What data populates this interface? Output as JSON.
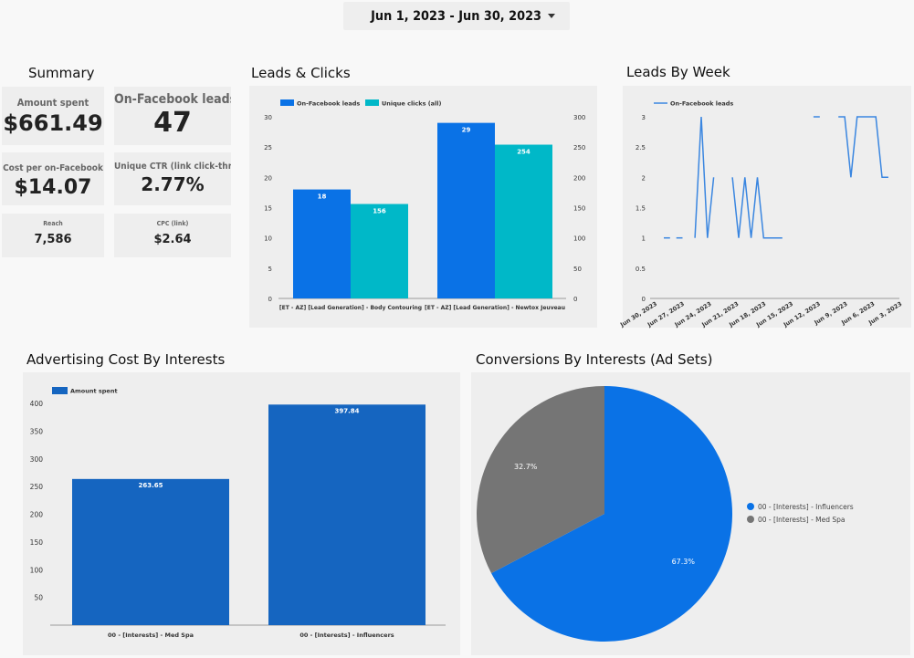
{
  "header": {
    "date_range": "Jun 1, 2023 - Jun 30, 2023"
  },
  "summary": {
    "title": "Summary",
    "kpis": [
      {
        "label": "Amount spent",
        "value": "$661.49"
      },
      {
        "label": "On-Facebook leads",
        "value": "47"
      },
      {
        "label": "Cost per on-Facebook",
        "value": "$14.07"
      },
      {
        "label": "Unique CTR (link click-throu",
        "value": "2.77%"
      },
      {
        "label": "Reach",
        "value": "7,586"
      },
      {
        "label": "CPC (link)",
        "value": "$2.64"
      }
    ]
  },
  "leads_clicks": {
    "title": "Leads & Clicks",
    "chart_data": {
      "type": "bar",
      "categories": [
        "[ET - AZ] [Lead Generation] - Body Contouring",
        "[ET - AZ] [Lead Generation] - Newtox Jeuveau"
      ],
      "series": [
        {
          "name": "On-Facebook leads",
          "values": [
            18,
            29
          ],
          "axis": "left",
          "color": "#0a72e6",
          "labels": [
            "18",
            "29"
          ]
        },
        {
          "name": "Unique clicks (all)",
          "values": [
            156,
            254
          ],
          "axis": "right",
          "color": "#00b8c8",
          "labels": [
            "156",
            "254"
          ]
        }
      ],
      "left_axis": {
        "min": 0,
        "max": 30,
        "ticks": [
          "0",
          "5",
          "10",
          "15",
          "20",
          "25",
          "30"
        ]
      },
      "right_axis": {
        "min": 0,
        "max": 300,
        "ticks": [
          "0",
          "50",
          "100",
          "150",
          "200",
          "250",
          "300"
        ]
      },
      "legend": "top-left"
    }
  },
  "leads_week": {
    "title": "Leads By Week",
    "chart_data": {
      "type": "line",
      "series": [
        {
          "name": "On-Facebook leads",
          "color": "#3a86e0",
          "segments": [
            [
              [
                0,
                1
              ],
              [
                1,
                1
              ]
            ],
            [
              [
                2,
                1
              ],
              [
                3,
                1
              ]
            ],
            [
              [
                5,
                1
              ],
              [
                6,
                3
              ],
              [
                7,
                1
              ],
              [
                8,
                2
              ]
            ],
            [
              [
                11,
                2
              ],
              [
                12,
                1
              ],
              [
                13,
                2
              ],
              [
                14,
                1
              ],
              [
                15,
                2
              ],
              [
                16,
                1
              ],
              [
                19,
                1
              ]
            ],
            [
              [
                24,
                3
              ],
              [
                25,
                3
              ]
            ],
            [
              [
                28,
                3
              ],
              [
                29,
                3
              ],
              [
                30,
                2
              ],
              [
                31,
                3
              ],
              [
                34,
                3
              ],
              [
                35,
                2
              ],
              [
                36,
                2
              ]
            ]
          ]
        }
      ],
      "y_axis": {
        "min": 0,
        "max": 3,
        "ticks": [
          "0",
          "0.5",
          "1",
          "1.5",
          "2",
          "2.5",
          "3"
        ]
      },
      "x_ticks": [
        "Jun 30, 2023",
        "Jun 27, 2023",
        "Jun 24, 2023",
        "Jun 21, 2023",
        "Jun 18, 2023",
        "Jun 15, 2023",
        "Jun 12, 2023",
        "Jun 9, 2023",
        "Jun 6, 2023",
        "Jun 3, 2023"
      ],
      "legend": "top-left"
    }
  },
  "adv_cost": {
    "title": "Advertising Cost By Interests",
    "chart_data": {
      "type": "bar",
      "categories": [
        "00 - [Interests] - Med Spa",
        "00 - [Interests] - Influencers"
      ],
      "series": [
        {
          "name": "Amount spent",
          "values": [
            263.65,
            397.84
          ],
          "labels": [
            "263.65",
            "397.84"
          ],
          "color": "#1565c0"
        }
      ],
      "y_axis": {
        "min": 0,
        "max": 420,
        "ticks": [
          "50",
          "100",
          "150",
          "200",
          "250",
          "300",
          "350",
          "400"
        ]
      },
      "legend": "top-left"
    }
  },
  "conversions": {
    "title": "Conversions By Interests (Ad Sets)",
    "chart_data": {
      "type": "pie",
      "slices": [
        {
          "name": "00 - [Interests] - Influencers",
          "value": 67.3,
          "label": "67.3%",
          "color": "#0a72e6"
        },
        {
          "name": "00 - [Interests] - Med Spa",
          "value": 32.7,
          "label": "32.7%",
          "color": "#757575"
        }
      ],
      "legend": "right"
    }
  }
}
